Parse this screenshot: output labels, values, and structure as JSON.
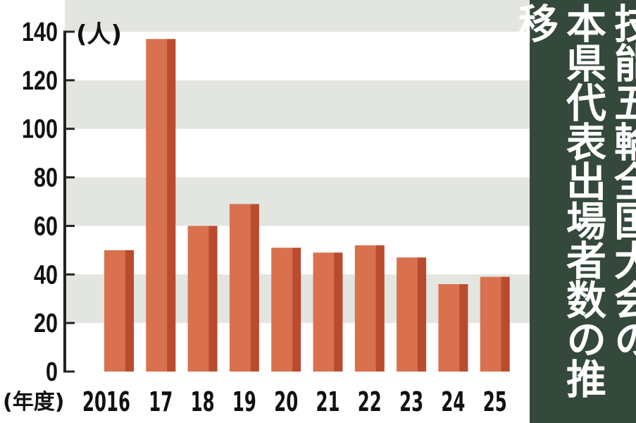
{
  "chart_data": {
    "type": "bar",
    "title_lines": [
      "技能五輪全国大会の",
      "本県代表出場者数の推移"
    ],
    "unit_label": "(人)",
    "xlabel": "(年度)",
    "categories": [
      "2016",
      "17",
      "18",
      "19",
      "20",
      "21",
      "22",
      "23",
      "24",
      "25"
    ],
    "values": [
      50,
      137,
      60,
      69,
      51,
      49,
      52,
      47,
      36,
      39
    ],
    "ylim": [
      0,
      140
    ],
    "yticks": [
      "0",
      "20",
      "40",
      "60",
      "80",
      "100",
      "120",
      "140"
    ],
    "grid": "alternating horizontal bands",
    "colors": {
      "bar": "#d9714f",
      "bar_shade": "#b94b2f",
      "band": "#e3e5e1",
      "panel": "#34483c"
    }
  }
}
